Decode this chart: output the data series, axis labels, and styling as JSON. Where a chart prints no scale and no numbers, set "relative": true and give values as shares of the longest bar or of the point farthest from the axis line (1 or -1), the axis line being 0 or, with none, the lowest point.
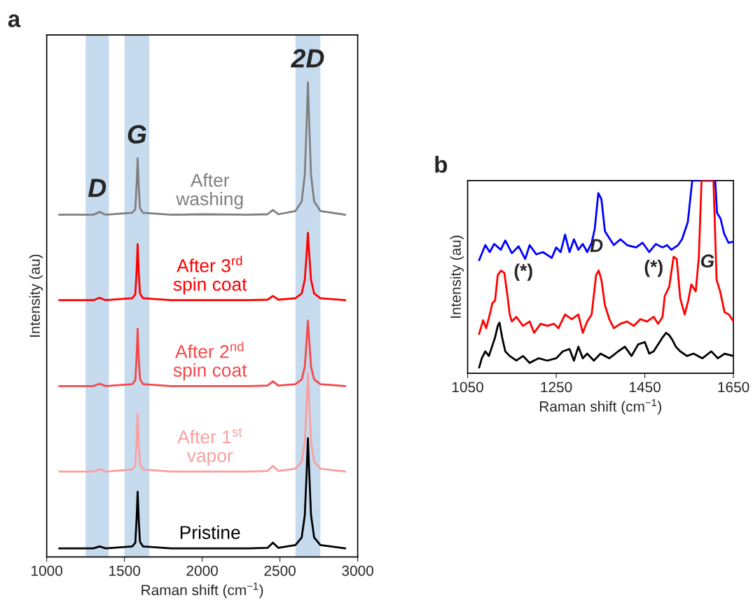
{
  "chart_data": [
    {
      "type": "line",
      "title": "a",
      "relative": true,
      "xlabel": "Raman shift (cm$^{−1}$)",
      "ylabel": "Intensity (au)",
      "x": [
        1080,
        1300,
        1340,
        1380,
        1550,
        1570,
        1578,
        1585,
        1592,
        1600,
        1620,
        1800,
        2000,
        2300,
        2420,
        2455,
        2490,
        2600,
        2640,
        2660,
        2672,
        2680,
        2688,
        2700,
        2720,
        2760,
        2920
      ],
      "xlim": [
        1000,
        3000
      ],
      "xticks": [
        1000,
        1500,
        2000,
        2500,
        3000
      ],
      "grid": false,
      "legend": false,
      "series": [
        {
          "name": "After\nwashing",
          "color": "#7f7f7f",
          "values": [
            0.721,
            0.721,
            0.727,
            0.721,
            0.725,
            0.733,
            0.781,
            0.84,
            0.781,
            0.735,
            0.725,
            0.721,
            0.722,
            0.721,
            0.722,
            0.731,
            0.722,
            0.729,
            0.749,
            0.805,
            0.916,
            1.0,
            0.916,
            0.805,
            0.749,
            0.729,
            0.721
          ]
        },
        {
          "name": "After 3$^{rd}$\nspin coat",
          "color": "#ff0000",
          "values": [
            0.541,
            0.541,
            0.546,
            0.541,
            0.545,
            0.553,
            0.6,
            0.659,
            0.6,
            0.555,
            0.545,
            0.541,
            0.541,
            0.541,
            0.542,
            0.55,
            0.542,
            0.545,
            0.555,
            0.584,
            0.64,
            0.683,
            0.64,
            0.584,
            0.555,
            0.545,
            0.541
          ]
        },
        {
          "name": "After 2$^{nd}$\nspin coat",
          "color": "#f5484a",
          "values": [
            0.36,
            0.36,
            0.365,
            0.36,
            0.364,
            0.372,
            0.42,
            0.481,
            0.42,
            0.375,
            0.364,
            0.36,
            0.36,
            0.36,
            0.361,
            0.37,
            0.361,
            0.364,
            0.374,
            0.401,
            0.457,
            0.498,
            0.457,
            0.401,
            0.374,
            0.364,
            0.36
          ]
        },
        {
          "name": "After 1$^{st}$\nvapor",
          "color": "#f8a0a0",
          "values": [
            0.18,
            0.18,
            0.185,
            0.18,
            0.184,
            0.192,
            0.241,
            0.302,
            0.241,
            0.195,
            0.184,
            0.18,
            0.18,
            0.18,
            0.181,
            0.192,
            0.181,
            0.186,
            0.201,
            0.242,
            0.325,
            0.387,
            0.325,
            0.242,
            0.201,
            0.186,
            0.18
          ]
        },
        {
          "name": "Pristine",
          "color": "#000000",
          "values": [
            0.018,
            0.018,
            0.022,
            0.018,
            0.022,
            0.03,
            0.078,
            0.137,
            0.078,
            0.032,
            0.022,
            0.018,
            0.018,
            0.018,
            0.019,
            0.03,
            0.019,
            0.025,
            0.041,
            0.088,
            0.18,
            0.25,
            0.18,
            0.088,
            0.041,
            0.025,
            0.018
          ]
        }
      ],
      "bands": [
        {
          "axis": "x",
          "from": 1250,
          "to": 1400,
          "color": "#b4cfea",
          "label": "D"
        },
        {
          "axis": "x",
          "from": 1500,
          "to": 1660,
          "color": "#b4cfea",
          "label": "G"
        },
        {
          "axis": "x",
          "from": 2600,
          "to": 2760,
          "color": "#b4cfea",
          "label": "2D"
        }
      ]
    },
    {
      "type": "line",
      "title": "b",
      "relative": true,
      "xlabel": "Raman shift (cm$^{−1}$)",
      "ylabel": "Intensity (au)",
      "xlim": [
        1050,
        1650
      ],
      "xticks": [
        1050,
        1250,
        1450,
        1650
      ],
      "grid": false,
      "legend": false,
      "series": [
        {
          "color": "#0000ff",
          "x": [
            1076,
            1090,
            1100,
            1110,
            1125,
            1135,
            1150,
            1165,
            1180,
            1190,
            1205,
            1220,
            1240,
            1250,
            1260,
            1270,
            1280,
            1290,
            1300,
            1310,
            1320,
            1330,
            1337,
            1345,
            1352,
            1360,
            1370,
            1380,
            1395,
            1410,
            1430,
            1445,
            1460,
            1475,
            1490,
            1500,
            1510,
            1525,
            1534,
            1547,
            1557,
            1609,
            1613,
            1621,
            1629,
            1639,
            1650
          ],
          "values": [
            0.587,
            0.665,
            0.629,
            0.671,
            0.641,
            0.689,
            0.623,
            0.659,
            0.593,
            0.665,
            0.617,
            0.629,
            0.599,
            0.653,
            0.629,
            0.719,
            0.629,
            0.695,
            0.641,
            0.671,
            0.629,
            0.677,
            0.749,
            0.934,
            0.904,
            0.737,
            0.701,
            0.665,
            0.695,
            0.665,
            0.653,
            0.677,
            0.629,
            0.671,
            0.653,
            0.665,
            0.641,
            0.665,
            0.695,
            0.784,
            1.0,
            1.0,
            0.832,
            0.802,
            0.725,
            0.677,
            0.683
          ]
        },
        {
          "color": "#ff0000",
          "x": [
            1076,
            1085,
            1092,
            1100,
            1106,
            1112,
            1118,
            1125,
            1133,
            1140,
            1145,
            1150,
            1160,
            1175,
            1190,
            1200,
            1215,
            1230,
            1245,
            1255,
            1270,
            1285,
            1300,
            1310,
            1320,
            1330,
            1340,
            1346,
            1352,
            1360,
            1370,
            1380,
            1395,
            1410,
            1425,
            1440,
            1455,
            1470,
            1480,
            1490,
            1495,
            1505,
            1515,
            1522,
            1530,
            1540,
            1548,
            1555,
            1565,
            1572,
            1578,
            1605,
            1612,
            1620,
            1630,
            1640,
            1650
          ],
          "values": [
            0.204,
            0.275,
            0.234,
            0.305,
            0.365,
            0.377,
            0.509,
            0.533,
            0.521,
            0.401,
            0.305,
            0.269,
            0.293,
            0.246,
            0.269,
            0.21,
            0.257,
            0.246,
            0.257,
            0.234,
            0.305,
            0.281,
            0.305,
            0.21,
            0.269,
            0.305,
            0.509,
            0.533,
            0.485,
            0.353,
            0.281,
            0.234,
            0.257,
            0.269,
            0.246,
            0.281,
            0.269,
            0.293,
            0.257,
            0.293,
            0.401,
            0.449,
            0.605,
            0.593,
            0.389,
            0.305,
            0.377,
            0.461,
            0.425,
            0.605,
            1.0,
            1.0,
            0.485,
            0.425,
            0.317,
            0.305,
            0.269
          ]
        },
        {
          "color": "#000000",
          "x": [
            1076,
            1082,
            1090,
            1098,
            1105,
            1112,
            1118,
            1122,
            1128,
            1135,
            1145,
            1160,
            1175,
            1190,
            1210,
            1230,
            1250,
            1265,
            1280,
            1290,
            1300,
            1310,
            1320,
            1335,
            1350,
            1370,
            1390,
            1405,
            1420,
            1435,
            1450,
            1460,
            1470,
            1480,
            1490,
            1498,
            1505,
            1512,
            1520,
            1530,
            1545,
            1560,
            1580,
            1600,
            1615,
            1630,
            1650
          ],
          "values": [
            0.03,
            0.078,
            0.114,
            0.09,
            0.138,
            0.186,
            0.246,
            0.263,
            0.186,
            0.114,
            0.09,
            0.066,
            0.09,
            0.054,
            0.078,
            0.066,
            0.078,
            0.114,
            0.126,
            0.066,
            0.138,
            0.078,
            0.102,
            0.066,
            0.102,
            0.078,
            0.114,
            0.138,
            0.09,
            0.15,
            0.162,
            0.102,
            0.114,
            0.15,
            0.186,
            0.21,
            0.198,
            0.174,
            0.138,
            0.114,
            0.09,
            0.102,
            0.078,
            0.114,
            0.078,
            0.102,
            0.09
          ]
        }
      ],
      "annotations": [
        "(*)",
        "D",
        "(*)",
        "G"
      ]
    }
  ]
}
